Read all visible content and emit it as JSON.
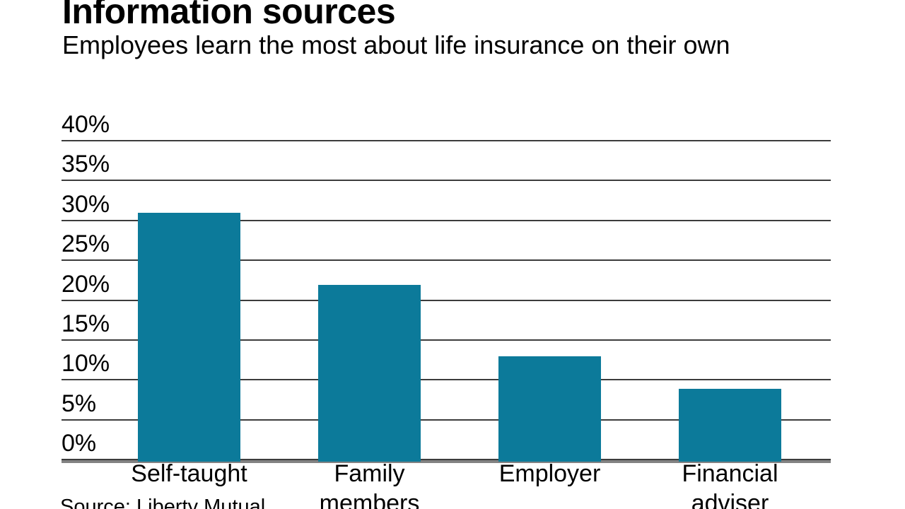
{
  "header": {
    "title": "Information sources",
    "subtitle": "Employees learn the most about life insurance on their own"
  },
  "footer": {
    "source": "Source: Liberty Mutual"
  },
  "chart_data": {
    "type": "bar",
    "title": "Information sources",
    "subtitle": "Employees learn the most about life insurance on their own",
    "categories": [
      "Self-taught",
      "Family members",
      "Employer",
      "Financial adviser"
    ],
    "category_lines": [
      [
        "Self-taught"
      ],
      [
        "Family",
        "members"
      ],
      [
        "Employer"
      ],
      [
        "Financial",
        "adviser"
      ]
    ],
    "values": [
      31,
      22,
      13,
      9
    ],
    "unit": "%",
    "xlabel": "",
    "ylabel": "",
    "ylim": [
      0,
      40
    ],
    "yticks": [
      40,
      35,
      30,
      25,
      20,
      15,
      10,
      5,
      0
    ],
    "ytick_labels": [
      "40%",
      "35%",
      "30%",
      "25%",
      "20%",
      "15%",
      "10%",
      "5%",
      "0%"
    ],
    "grid": true,
    "legend": false,
    "source": "Source: Liberty Mutual"
  },
  "style": {
    "bar_color": "#0c7a9a",
    "grid_color": "#3c3c3c",
    "axis_color": "#828282",
    "text_color": "#000000",
    "background": "#ffffff"
  }
}
